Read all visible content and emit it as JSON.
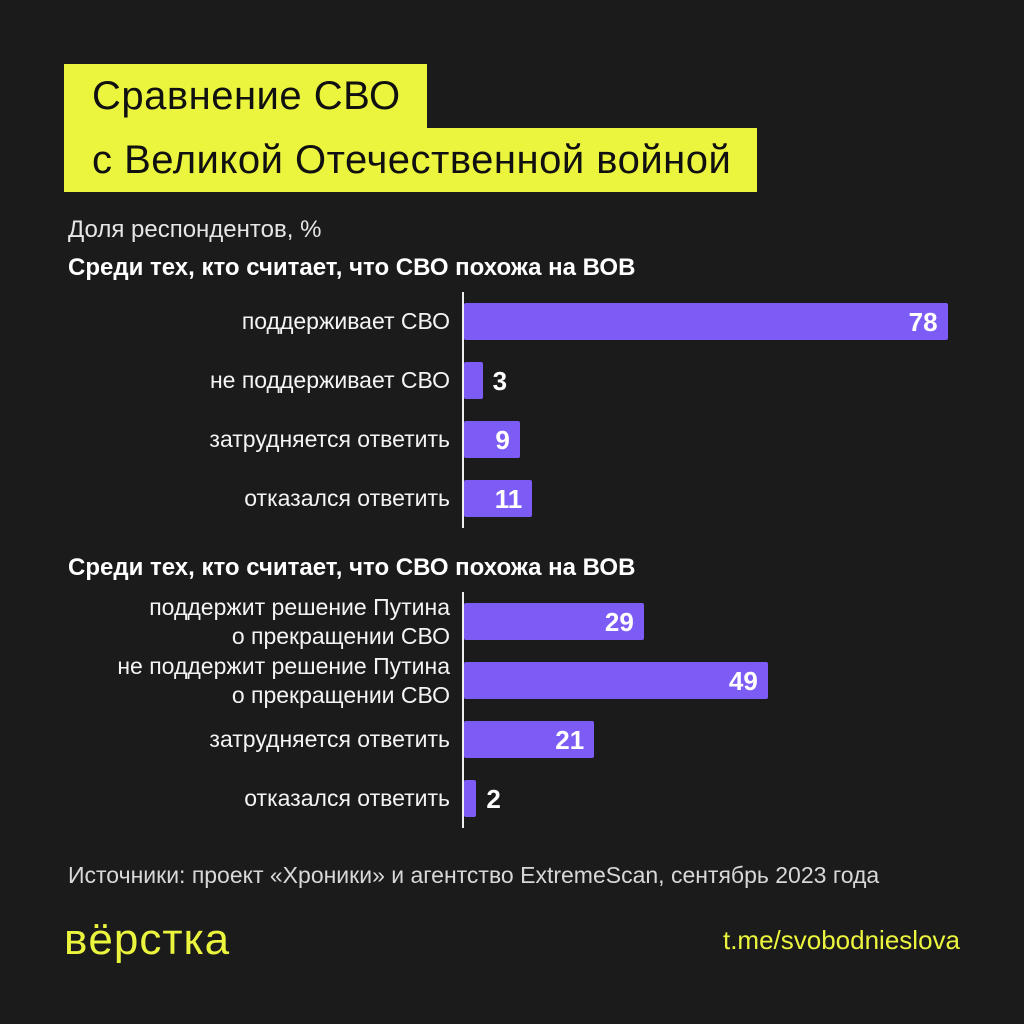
{
  "page": {
    "bg": "#1b1b1b",
    "accent_yellow": "#ecf53d",
    "bar_purple": "#7d5cf5"
  },
  "title": {
    "line1": "Сравнение СВО",
    "line2": "с Великой Отечественной войной"
  },
  "subtitle": "Доля респондентов, %",
  "chart_data": [
    {
      "type": "bar",
      "orientation": "horizontal",
      "title": "Среди тех, кто считает, что СВО похожа на ВОВ",
      "categories": [
        "поддерживает СВО",
        "не поддерживает СВО",
        "затрудняется ответить",
        "отказался ответить"
      ],
      "values": [
        78,
        3,
        9,
        11
      ],
      "unit": "%",
      "xlim": [
        0,
        100
      ],
      "bar_color": "#7d5cf5",
      "value_labels": "on"
    },
    {
      "type": "bar",
      "orientation": "horizontal",
      "title": "Среди тех, кто считает, что СВО похожа на ВОВ",
      "categories": [
        "поддержит решение Путина\nо прекращении СВО",
        "не поддержит решение Путина\nо прекращении СВО",
        "затрудняется ответить",
        "отказался ответить"
      ],
      "values": [
        29,
        49,
        21,
        2
      ],
      "unit": "%",
      "xlim": [
        0,
        100
      ],
      "bar_color": "#7d5cf5",
      "value_labels": "on"
    }
  ],
  "footer": {
    "source": "Источники: проект «Хроники» и агентство ExtremeScan, сентябрь 2023 года",
    "logo": "вёрстка",
    "link": "t.me/svobodnieslova"
  }
}
